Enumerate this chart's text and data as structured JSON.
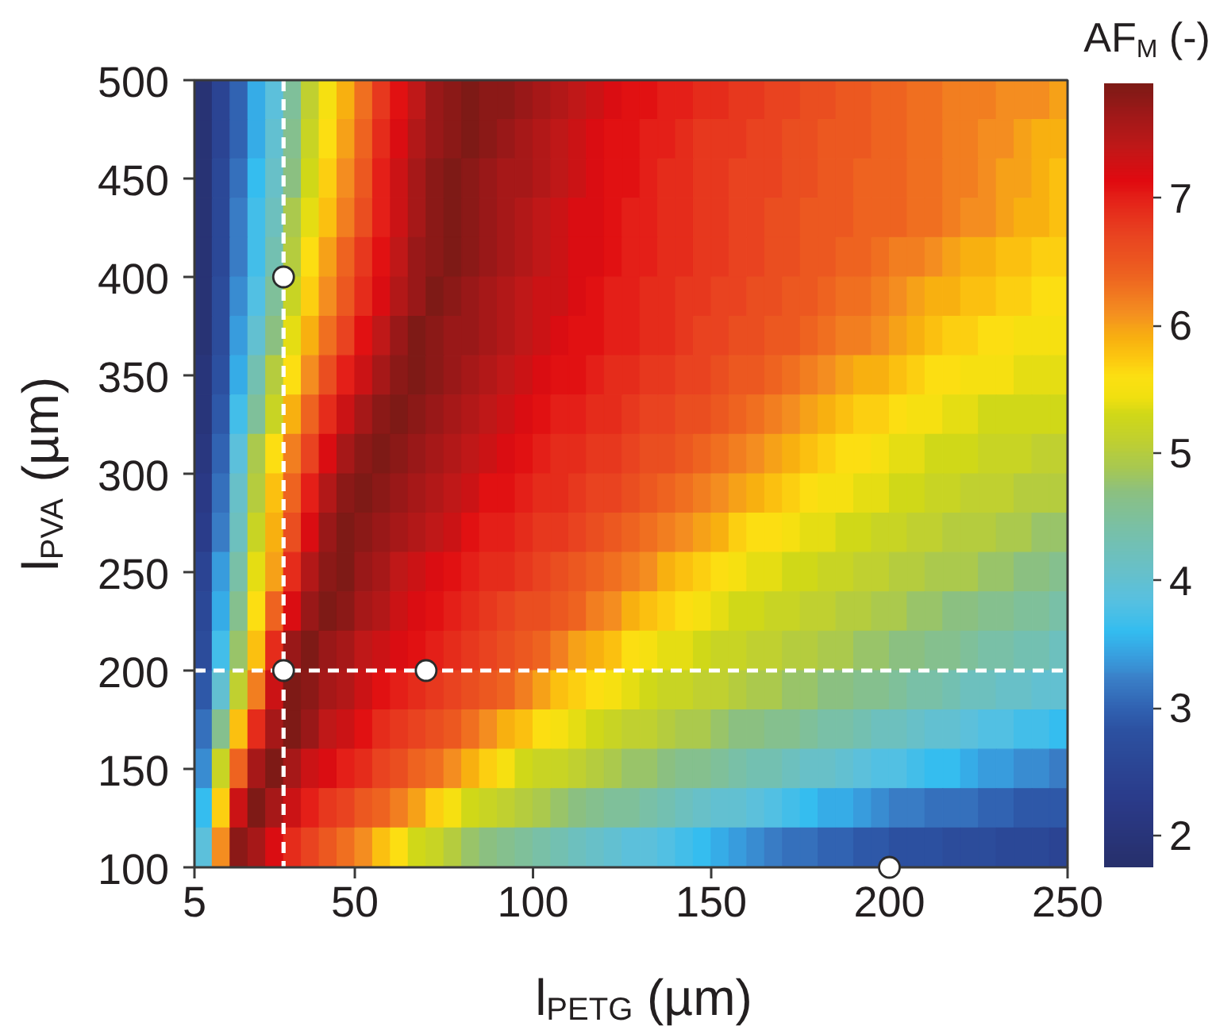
{
  "chart_data": {
    "type": "heatmap",
    "xlabel": "l$_{PETG}$ (µm)",
    "ylabel": "l$_{PVA}$ (µm)",
    "clabel": "AF$_{M}$ (-)",
    "xlim": [
      5,
      250
    ],
    "ylim": [
      100,
      500
    ],
    "xticks": [
      5,
      50,
      100,
      150,
      200,
      250
    ],
    "yticks": [
      100,
      150,
      200,
      250,
      300,
      350,
      400,
      450,
      500
    ],
    "clim": [
      1.75,
      7.9
    ],
    "cticks": [
      2,
      3,
      4,
      5,
      6,
      7
    ],
    "x": [
      7.5,
      12.5,
      17.5,
      22.5,
      27.5,
      32.5,
      37.5,
      42.5,
      47.5,
      52.5,
      57.5,
      62.5,
      67.5,
      72.5,
      77.5,
      82.5,
      87.5,
      92.5,
      97.5,
      102.5,
      107.5,
      112.5,
      117.5,
      122.5,
      127.5,
      132.5,
      137.5,
      142.5,
      147.5,
      152.5,
      157.5,
      162.5,
      167.5,
      172.5,
      177.5,
      182.5,
      187.5,
      192.5,
      197.5,
      202.5,
      207.5,
      212.5,
      217.5,
      222.5,
      227.5,
      232.5,
      237.5,
      242.5,
      247.5
    ],
    "y": [
      490,
      470,
      450,
      430,
      410,
      390,
      370,
      350,
      330,
      310,
      290,
      270,
      250,
      230,
      210,
      190,
      170,
      150,
      130,
      110
    ],
    "cells": [
      [
        1.9,
        2.5,
        3.0,
        3.5,
        3.9,
        4.5,
        5.1,
        5.5,
        5.9,
        6.3,
        6.8,
        7.1,
        7.4,
        7.7,
        7.8,
        7.9,
        7.8,
        7.8,
        7.7,
        7.6,
        7.5,
        7.4,
        7.3,
        7.2,
        7.1,
        7.1,
        7.0,
        7.0,
        6.9,
        6.9,
        6.8,
        6.8,
        6.7,
        6.7,
        6.6,
        6.6,
        6.5,
        6.5,
        6.4,
        6.4,
        6.3,
        6.3,
        6.2,
        6.2,
        6.2,
        6.1,
        6.1,
        6.1,
        6.0
      ],
      [
        1.9,
        2.5,
        3.0,
        3.5,
        4.0,
        4.6,
        5.2,
        5.6,
        6.0,
        6.4,
        6.9,
        7.2,
        7.5,
        7.7,
        7.8,
        7.9,
        7.8,
        7.7,
        7.6,
        7.5,
        7.4,
        7.3,
        7.2,
        7.1,
        7.1,
        7.0,
        7.0,
        6.9,
        6.8,
        6.8,
        6.8,
        6.7,
        6.7,
        6.6,
        6.6,
        6.5,
        6.5,
        6.5,
        6.4,
        6.4,
        6.3,
        6.3,
        6.2,
        6.2,
        6.1,
        6.1,
        6.0,
        5.9,
        5.9
      ],
      [
        1.9,
        2.6,
        3.1,
        3.6,
        4.1,
        4.7,
        5.3,
        5.7,
        6.1,
        6.5,
        7.0,
        7.3,
        7.6,
        7.8,
        7.9,
        7.8,
        7.7,
        7.6,
        7.6,
        7.5,
        7.4,
        7.3,
        7.2,
        7.1,
        7.1,
        7.0,
        6.9,
        6.9,
        6.8,
        6.8,
        6.7,
        6.7,
        6.7,
        6.6,
        6.6,
        6.5,
        6.5,
        6.4,
        6.4,
        6.4,
        6.3,
        6.3,
        6.2,
        6.2,
        6.1,
        6.0,
        6.0,
        5.9,
        5.8
      ],
      [
        1.9,
        2.6,
        3.2,
        3.7,
        4.2,
        4.9,
        5.4,
        5.8,
        6.2,
        6.6,
        7.0,
        7.3,
        7.6,
        7.8,
        7.9,
        7.8,
        7.7,
        7.6,
        7.5,
        7.4,
        7.3,
        7.2,
        7.2,
        7.1,
        7.0,
        7.0,
        6.9,
        6.9,
        6.8,
        6.8,
        6.7,
        6.7,
        6.6,
        6.6,
        6.5,
        6.5,
        6.5,
        6.4,
        6.4,
        6.4,
        6.3,
        6.3,
        6.2,
        6.1,
        6.1,
        6.0,
        5.9,
        5.9,
        5.8
      ],
      [
        1.9,
        2.6,
        3.2,
        3.7,
        4.3,
        5.0,
        5.6,
        6.0,
        6.4,
        6.8,
        7.1,
        7.4,
        7.7,
        7.8,
        7.9,
        7.8,
        7.7,
        7.6,
        7.5,
        7.4,
        7.3,
        7.2,
        7.2,
        7.1,
        7.0,
        7.0,
        6.9,
        6.9,
        6.8,
        6.8,
        6.7,
        6.7,
        6.6,
        6.6,
        6.5,
        6.5,
        6.4,
        6.4,
        6.3,
        6.2,
        6.2,
        6.1,
        6.0,
        5.9,
        5.9,
        5.8,
        5.8,
        5.7,
        5.7
      ],
      [
        1.9,
        2.7,
        3.3,
        3.8,
        4.5,
        5.2,
        5.7,
        6.1,
        6.5,
        6.9,
        7.2,
        7.5,
        7.7,
        7.9,
        7.8,
        7.7,
        7.6,
        7.5,
        7.4,
        7.3,
        7.3,
        7.2,
        7.1,
        7.0,
        7.0,
        6.9,
        6.9,
        6.8,
        6.8,
        6.7,
        6.7,
        6.6,
        6.6,
        6.5,
        6.5,
        6.4,
        6.3,
        6.3,
        6.2,
        6.1,
        6.0,
        5.9,
        5.9,
        5.8,
        5.8,
        5.7,
        5.7,
        5.6,
        5.6
      ],
      [
        1.9,
        2.7,
        3.4,
        4.0,
        4.7,
        5.4,
        5.9,
        6.3,
        6.7,
        7.1,
        7.4,
        7.7,
        7.9,
        7.8,
        7.7,
        7.7,
        7.6,
        7.5,
        7.4,
        7.3,
        7.2,
        7.1,
        7.1,
        7.0,
        7.0,
        6.9,
        6.9,
        6.8,
        6.7,
        6.7,
        6.6,
        6.6,
        6.5,
        6.5,
        6.4,
        6.3,
        6.2,
        6.2,
        6.1,
        6.0,
        5.9,
        5.8,
        5.7,
        5.7,
        5.6,
        5.6,
        5.5,
        5.5,
        5.5
      ],
      [
        2.0,
        2.8,
        3.5,
        4.3,
        5.0,
        5.6,
        6.1,
        6.6,
        7.0,
        7.3,
        7.6,
        7.8,
        7.9,
        7.8,
        7.7,
        7.6,
        7.5,
        7.4,
        7.3,
        7.2,
        7.1,
        7.1,
        7.0,
        6.9,
        6.9,
        6.8,
        6.8,
        6.7,
        6.7,
        6.6,
        6.5,
        6.5,
        6.4,
        6.3,
        6.2,
        6.1,
        6.0,
        5.9,
        5.9,
        5.8,
        5.7,
        5.6,
        5.6,
        5.5,
        5.5,
        5.5,
        5.4,
        5.4,
        5.4
      ],
      [
        2.0,
        2.9,
        3.7,
        4.5,
        5.2,
        5.9,
        6.4,
        6.9,
        7.3,
        7.6,
        7.8,
        7.9,
        7.8,
        7.7,
        7.6,
        7.5,
        7.4,
        7.3,
        7.2,
        7.1,
        7.0,
        7.0,
        6.9,
        6.9,
        6.8,
        6.7,
        6.7,
        6.6,
        6.6,
        6.5,
        6.4,
        6.3,
        6.2,
        6.1,
        6.0,
        5.9,
        5.8,
        5.7,
        5.7,
        5.6,
        5.5,
        5.5,
        5.4,
        5.4,
        5.3,
        5.3,
        5.3,
        5.3,
        5.3
      ],
      [
        2.1,
        3.0,
        3.9,
        4.9,
        5.6,
        6.2,
        6.7,
        7.2,
        7.6,
        7.8,
        7.9,
        7.8,
        7.7,
        7.6,
        7.5,
        7.4,
        7.3,
        7.2,
        7.1,
        7.0,
        6.9,
        6.9,
        6.8,
        6.8,
        6.7,
        6.6,
        6.6,
        6.5,
        6.4,
        6.3,
        6.2,
        6.1,
        6.0,
        5.9,
        5.8,
        5.7,
        5.6,
        5.6,
        5.5,
        5.4,
        5.4,
        5.3,
        5.3,
        5.3,
        5.2,
        5.2,
        5.2,
        5.1,
        5.1
      ],
      [
        2.2,
        3.1,
        4.1,
        5.0,
        5.8,
        6.4,
        7.0,
        7.5,
        7.8,
        7.9,
        7.8,
        7.7,
        7.6,
        7.5,
        7.4,
        7.3,
        7.1,
        7.1,
        7.0,
        6.9,
        6.9,
        6.8,
        6.7,
        6.7,
        6.6,
        6.5,
        6.4,
        6.3,
        6.2,
        6.1,
        6.0,
        5.9,
        5.8,
        5.7,
        5.6,
        5.5,
        5.5,
        5.4,
        5.4,
        5.3,
        5.3,
        5.2,
        5.2,
        5.1,
        5.1,
        5.1,
        5.0,
        5.0,
        5.0
      ],
      [
        2.3,
        3.2,
        4.2,
        5.2,
        5.9,
        6.6,
        7.2,
        7.7,
        7.9,
        7.8,
        7.7,
        7.6,
        7.5,
        7.4,
        7.3,
        7.1,
        7.0,
        7.0,
        6.9,
        6.8,
        6.8,
        6.7,
        6.6,
        6.5,
        6.4,
        6.3,
        6.2,
        6.1,
        6.0,
        5.9,
        5.7,
        5.6,
        5.6,
        5.5,
        5.4,
        5.4,
        5.3,
        5.3,
        5.2,
        5.2,
        5.1,
        5.1,
        5.0,
        5.0,
        5.0,
        4.9,
        4.9,
        4.8,
        4.8
      ],
      [
        2.5,
        3.4,
        4.4,
        5.4,
        6.0,
        6.9,
        7.5,
        7.8,
        7.9,
        7.7,
        7.6,
        7.4,
        7.3,
        7.2,
        7.1,
        7.0,
        6.9,
        6.9,
        6.8,
        6.7,
        6.6,
        6.5,
        6.4,
        6.3,
        6.2,
        6.1,
        5.9,
        5.8,
        5.7,
        5.6,
        5.5,
        5.4,
        5.4,
        5.3,
        5.3,
        5.2,
        5.2,
        5.1,
        5.1,
        5.0,
        5.0,
        4.9,
        4.9,
        4.9,
        4.8,
        4.8,
        4.7,
        4.7,
        4.6
      ],
      [
        2.6,
        3.5,
        4.6,
        5.6,
        6.4,
        7.2,
        7.7,
        7.9,
        7.8,
        7.6,
        7.5,
        7.3,
        7.2,
        7.1,
        7.0,
        6.9,
        6.8,
        6.7,
        6.6,
        6.6,
        6.5,
        6.4,
        6.2,
        6.1,
        5.9,
        5.8,
        5.7,
        5.6,
        5.5,
        5.4,
        5.3,
        5.3,
        5.2,
        5.2,
        5.1,
        5.1,
        5.0,
        5.0,
        4.9,
        4.9,
        4.8,
        4.8,
        4.7,
        4.7,
        4.6,
        4.6,
        4.5,
        4.5,
        4.4
      ],
      [
        2.7,
        3.7,
        4.8,
        5.8,
        6.9,
        7.7,
        7.9,
        7.7,
        7.6,
        7.4,
        7.3,
        7.2,
        7.1,
        7.0,
        6.9,
        6.8,
        6.7,
        6.6,
        6.5,
        6.4,
        6.2,
        6.0,
        5.9,
        5.8,
        5.6,
        5.5,
        5.4,
        5.4,
        5.3,
        5.2,
        5.2,
        5.1,
        5.1,
        5.0,
        5.0,
        4.9,
        4.9,
        4.8,
        4.8,
        4.7,
        4.7,
        4.6,
        4.6,
        4.5,
        4.4,
        4.4,
        4.3,
        4.3,
        4.2
      ],
      [
        2.9,
        4.0,
        5.1,
        6.2,
        7.3,
        7.9,
        7.8,
        7.6,
        7.5,
        7.3,
        7.1,
        7.0,
        6.9,
        6.8,
        6.7,
        6.6,
        6.5,
        6.4,
        6.2,
        6.0,
        5.8,
        5.7,
        5.6,
        5.5,
        5.4,
        5.3,
        5.2,
        5.2,
        5.1,
        5.1,
        5.0,
        4.9,
        4.9,
        4.8,
        4.8,
        4.7,
        4.7,
        4.6,
        4.6,
        4.5,
        4.4,
        4.4,
        4.3,
        4.2,
        4.2,
        4.1,
        4.1,
        4.0,
        4.0
      ],
      [
        3.1,
        4.6,
        5.8,
        6.9,
        7.6,
        7.9,
        7.7,
        7.4,
        7.3,
        7.1,
        6.9,
        6.8,
        6.7,
        6.6,
        6.5,
        6.3,
        6.1,
        5.9,
        5.8,
        5.6,
        5.5,
        5.4,
        5.3,
        5.2,
        5.1,
        5.1,
        5.0,
        4.9,
        4.9,
        4.8,
        4.7,
        4.7,
        4.6,
        4.6,
        4.5,
        4.4,
        4.4,
        4.3,
        4.2,
        4.2,
        4.1,
        4.0,
        4.0,
        3.9,
        3.8,
        3.8,
        3.7,
        3.7,
        3.6
      ],
      [
        3.3,
        5.2,
        6.4,
        7.6,
        7.9,
        7.6,
        7.3,
        7.2,
        7.0,
        6.9,
        6.7,
        6.6,
        6.4,
        6.3,
        6.1,
        5.9,
        5.7,
        5.5,
        5.3,
        5.2,
        5.2,
        5.1,
        5.0,
        4.9,
        4.8,
        4.8,
        4.7,
        4.6,
        4.6,
        4.5,
        4.4,
        4.3,
        4.3,
        4.2,
        4.1,
        4.1,
        4.0,
        3.9,
        3.8,
        3.8,
        3.7,
        3.6,
        3.6,
        3.5,
        3.4,
        3.4,
        3.3,
        3.3,
        3.2
      ],
      [
        3.6,
        5.7,
        7.3,
        7.9,
        7.6,
        7.3,
        7.0,
        6.8,
        6.7,
        6.5,
        6.4,
        6.2,
        6.0,
        5.7,
        5.5,
        5.3,
        5.2,
        5.1,
        5.0,
        4.9,
        4.8,
        4.7,
        4.6,
        4.5,
        4.5,
        4.4,
        4.3,
        4.2,
        4.1,
        4.0,
        4.0,
        3.9,
        3.8,
        3.7,
        3.6,
        3.5,
        3.5,
        3.4,
        3.3,
        3.2,
        3.2,
        3.1,
        3.1,
        3.1,
        3.0,
        3.0,
        2.9,
        2.9,
        2.9
      ],
      [
        3.9,
        6.1,
        7.8,
        7.6,
        7.2,
        6.9,
        6.7,
        6.5,
        6.3,
        6.1,
        5.8,
        5.6,
        5.3,
        5.2,
        5.0,
        4.8,
        4.7,
        4.6,
        4.5,
        4.4,
        4.3,
        4.2,
        4.1,
        4.0,
        3.9,
        3.9,
        3.8,
        3.7,
        3.6,
        3.5,
        3.4,
        3.3,
        3.2,
        3.1,
        3.1,
        3.0,
        3.0,
        2.9,
        2.9,
        2.8,
        2.8,
        2.8,
        2.7,
        2.7,
        2.7,
        2.6,
        2.6,
        2.6,
        2.5
      ]
    ],
    "series": [
      {
        "type": "scatter",
        "x": [
          30,
          30,
          70,
          200
        ],
        "values": [
          400,
          200,
          200,
          100
        ],
        "color": "#ffffff"
      }
    ],
    "marker": "circle",
    "ref_lines": [
      {
        "axis": "x",
        "value": 30,
        "color": "#ffffff",
        "line_style": "dashed"
      },
      {
        "axis": "y",
        "value": 200,
        "color": "#ffffff",
        "line_style": "dashed"
      }
    ]
  }
}
